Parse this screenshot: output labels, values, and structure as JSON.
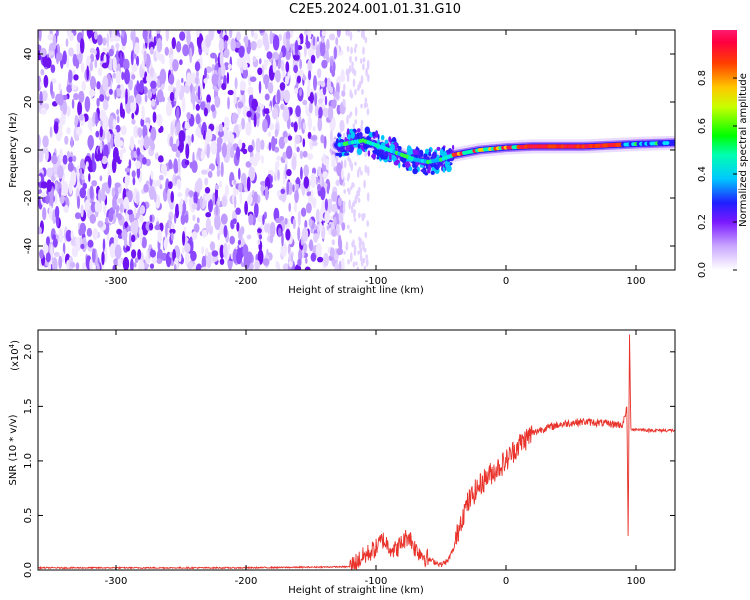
{
  "title": "C2E5.2024.001.01.31.G10",
  "chart_data": [
    {
      "type": "heatmap",
      "name": "spectrogram",
      "xlabel": "Height of straight line (km)",
      "ylabel": "Frequency (Hz)",
      "xlim": [
        -360,
        130
      ],
      "ylim": [
        -50,
        50
      ],
      "xticks": [
        -300,
        -200,
        -100,
        0,
        100
      ],
      "xtick_labels": [
        "-300",
        "-200",
        "-100",
        "0",
        "100"
      ],
      "yticks": [
        -40,
        -20,
        0,
        20,
        40
      ],
      "ytick_labels": [
        "-40",
        "-20",
        "0",
        "20",
        "40"
      ],
      "noise_region_x": [
        -360,
        -125
      ],
      "signal_trace": {
        "x": [
          -130,
          -120,
          -110,
          -100,
          -90,
          -80,
          -70,
          -60,
          -50,
          -40,
          -30,
          -20,
          -10,
          0,
          20,
          40,
          60,
          80,
          100,
          130
        ],
        "y": [
          2,
          3,
          4,
          2,
          0,
          -2,
          -4,
          -5,
          -4,
          -2,
          -1,
          0,
          0.5,
          1,
          1.5,
          1.5,
          1.5,
          2,
          2.5,
          3
        ]
      },
      "colorbar": {
        "label": "Normalized spectral amplitude",
        "range": [
          0,
          1
        ],
        "ticks": [
          0.0,
          0.2,
          0.4,
          0.6,
          0.8
        ],
        "tick_labels": [
          "0.0",
          "0.2",
          "0.4",
          "0.6",
          "0.8"
        ]
      }
    },
    {
      "type": "line",
      "name": "snr",
      "xlabel": "Height of straight line (km)",
      "ylabel": "SNR (10 * v/v)",
      "multiplier_label": "(x10",
      "multiplier_exp": "4",
      "multiplier_close": ")",
      "xlim": [
        -360,
        130
      ],
      "ylim": [
        0,
        2.2
      ],
      "xticks": [
        -300,
        -200,
        -100,
        0,
        100
      ],
      "xtick_labels": [
        "-300",
        "-200",
        "-100",
        "0",
        "100"
      ],
      "yticks": [
        0.0,
        0.5,
        1.0,
        1.5,
        2.0
      ],
      "ytick_labels": [
        "0.0",
        "0.5",
        "1.0",
        "1.5",
        "2.0"
      ],
      "color": "#e8322a",
      "series": {
        "x": [
          -360,
          -300,
          -200,
          -120,
          -110,
          -100,
          -95,
          -90,
          -85,
          -80,
          -75,
          -70,
          -60,
          -50,
          -45,
          -40,
          -35,
          -30,
          -25,
          -20,
          -15,
          -10,
          -5,
          0,
          5,
          10,
          15,
          20,
          25,
          30,
          40,
          50,
          60,
          70,
          80,
          90,
          93,
          94,
          95,
          96,
          97,
          100,
          110,
          120,
          130
        ],
        "y": [
          0.02,
          0.02,
          0.02,
          0.03,
          0.12,
          0.2,
          0.28,
          0.22,
          0.18,
          0.25,
          0.32,
          0.2,
          0.1,
          0.05,
          0.08,
          0.2,
          0.45,
          0.6,
          0.7,
          0.78,
          0.85,
          0.9,
          0.95,
          1.0,
          1.08,
          1.15,
          1.2,
          1.25,
          1.28,
          1.3,
          1.33,
          1.35,
          1.36,
          1.35,
          1.34,
          1.33,
          1.5,
          0.25,
          2.15,
          1.3,
          1.29,
          1.29,
          1.28,
          1.28,
          1.28
        ]
      }
    }
  ]
}
